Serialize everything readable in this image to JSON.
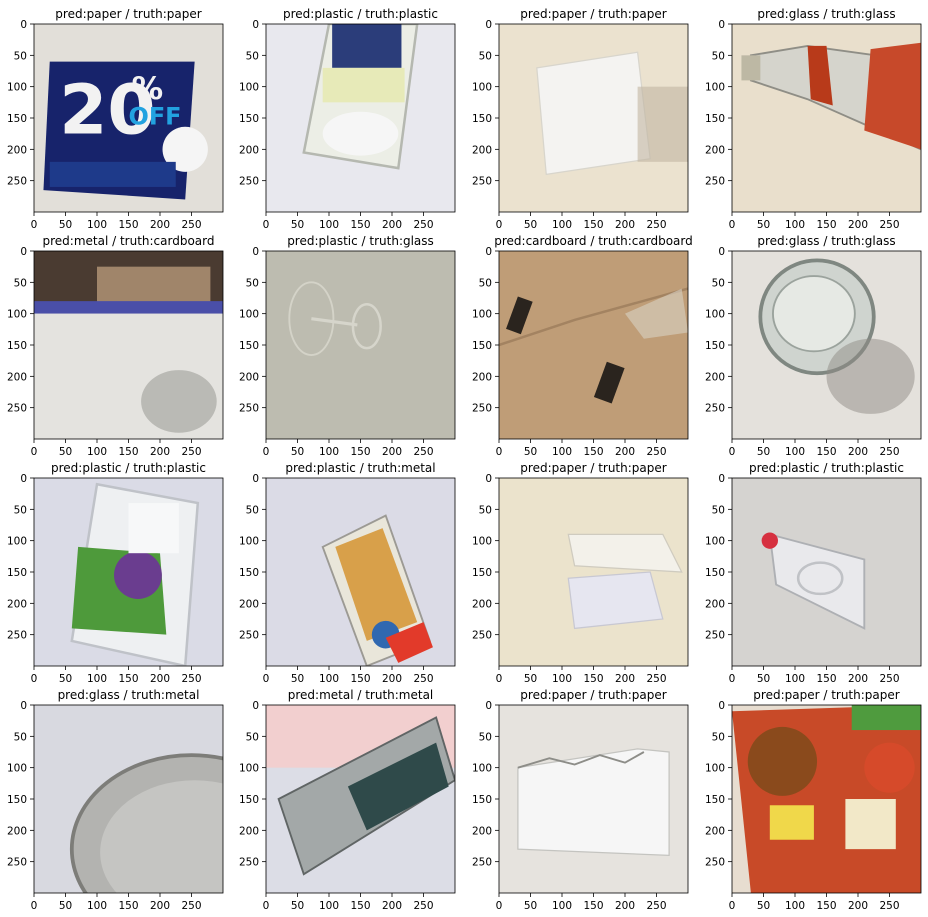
{
  "chart_data": {
    "type": "image-grid",
    "rows": 4,
    "cols": 4,
    "xlim": [
      0,
      300
    ],
    "ylim": [
      300,
      0
    ],
    "xticks": [
      0,
      50,
      100,
      150,
      200,
      250
    ],
    "yticks": [
      0,
      50,
      100,
      150,
      200,
      250
    ],
    "panels": [
      {
        "title": "pred:paper / truth:paper",
        "pred": "paper",
        "truth": "paper",
        "bg": "#e2dfd9",
        "scene": "coupon"
      },
      {
        "title": "pred:plastic / truth:plastic",
        "pred": "plastic",
        "truth": "plastic",
        "bg": "#e8e8ee",
        "scene": "plastic-box"
      },
      {
        "title": "pred:paper / truth:paper",
        "pred": "paper",
        "truth": "paper",
        "bg": "#ebe2cf",
        "scene": "paper-sheet"
      },
      {
        "title": "pred:glass / truth:glass",
        "pred": "glass",
        "truth": "glass",
        "bg": "#e9dfcc",
        "scene": "bottle"
      },
      {
        "title": "pred:metal / truth:cardboard",
        "pred": "metal",
        "truth": "cardboard",
        "bg": "#dcdad6",
        "scene": "cardboard-wall"
      },
      {
        "title": "pred:plastic / truth:glass",
        "pred": "plastic",
        "truth": "glass",
        "bg": "#bdbcb0",
        "scene": "wine-glass"
      },
      {
        "title": "pred:cardboard / truth:cardboard",
        "pred": "cardboard",
        "truth": "cardboard",
        "bg": "#c7a784",
        "scene": "cardboard"
      },
      {
        "title": "pred:glass / truth:glass",
        "pred": "glass",
        "truth": "glass",
        "bg": "#e4e1dc",
        "scene": "jar"
      },
      {
        "title": "pred:plastic / truth:plastic",
        "pred": "plastic",
        "truth": "plastic",
        "bg": "#dadbe6",
        "scene": "berry-box"
      },
      {
        "title": "pred:plastic / truth:metal",
        "pred": "plastic",
        "truth": "metal",
        "bg": "#dbdbe6",
        "scene": "can-label"
      },
      {
        "title": "pred:paper / truth:paper",
        "pred": "paper",
        "truth": "paper",
        "bg": "#ebe3cc",
        "scene": "paper-fold"
      },
      {
        "title": "pred:plastic / truth:plastic",
        "pred": "plastic",
        "truth": "plastic",
        "bg": "#d5d3d0",
        "scene": "water-bottle"
      },
      {
        "title": "pred:glass / truth:metal",
        "pred": "glass",
        "truth": "metal",
        "bg": "#d8d9e0",
        "scene": "tin-lid"
      },
      {
        "title": "pred:metal / truth:metal",
        "pred": "metal",
        "truth": "metal",
        "bg": "#dcdde6",
        "scene": "soda-can"
      },
      {
        "title": "pred:paper / truth:paper",
        "pred": "paper",
        "truth": "paper",
        "bg": "#e6e3de",
        "scene": "envelope"
      },
      {
        "title": "pred:paper / truth:paper",
        "pred": "paper",
        "truth": "paper",
        "bg": "#e7ddd0",
        "scene": "flyer"
      }
    ]
  }
}
